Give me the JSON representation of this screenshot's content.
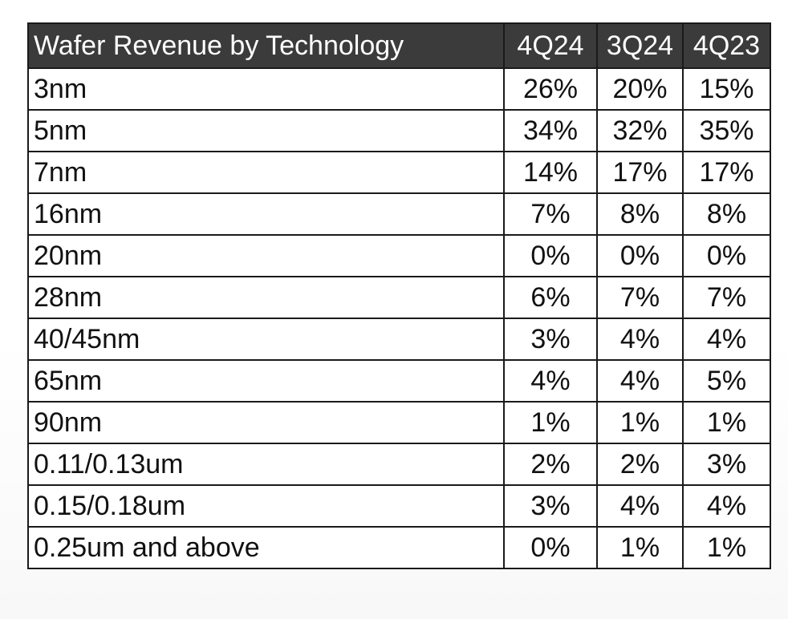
{
  "chart_data": {
    "type": "table",
    "title": "Wafer Revenue by Technology",
    "columns": [
      "4Q24",
      "3Q24",
      "4Q23"
    ],
    "rows": [
      {
        "label": "3nm",
        "values": [
          "26%",
          "20%",
          "15%"
        ]
      },
      {
        "label": "5nm",
        "values": [
          "34%",
          "32%",
          "35%"
        ]
      },
      {
        "label": "7nm",
        "values": [
          "14%",
          "17%",
          "17%"
        ]
      },
      {
        "label": "16nm",
        "values": [
          "7%",
          "8%",
          "8%"
        ]
      },
      {
        "label": "20nm",
        "values": [
          "0%",
          "0%",
          "0%"
        ]
      },
      {
        "label": "28nm",
        "values": [
          "6%",
          "7%",
          "7%"
        ]
      },
      {
        "label": "40/45nm",
        "values": [
          "3%",
          "4%",
          "4%"
        ]
      },
      {
        "label": "65nm",
        "values": [
          "4%",
          "4%",
          "5%"
        ]
      },
      {
        "label": "90nm",
        "values": [
          "1%",
          "1%",
          "1%"
        ]
      },
      {
        "label": "0.11/0.13um",
        "values": [
          "2%",
          "2%",
          "3%"
        ]
      },
      {
        "label": "0.15/0.18um",
        "values": [
          "3%",
          "4%",
          "4%"
        ]
      },
      {
        "label": "0.25um and above",
        "values": [
          "0%",
          "1%",
          "1%"
        ]
      }
    ]
  },
  "colors": {
    "header_bg": "#3b3b3b",
    "header_text": "#ffffff",
    "border": "#1a1a1a",
    "cell_text": "#111111"
  }
}
